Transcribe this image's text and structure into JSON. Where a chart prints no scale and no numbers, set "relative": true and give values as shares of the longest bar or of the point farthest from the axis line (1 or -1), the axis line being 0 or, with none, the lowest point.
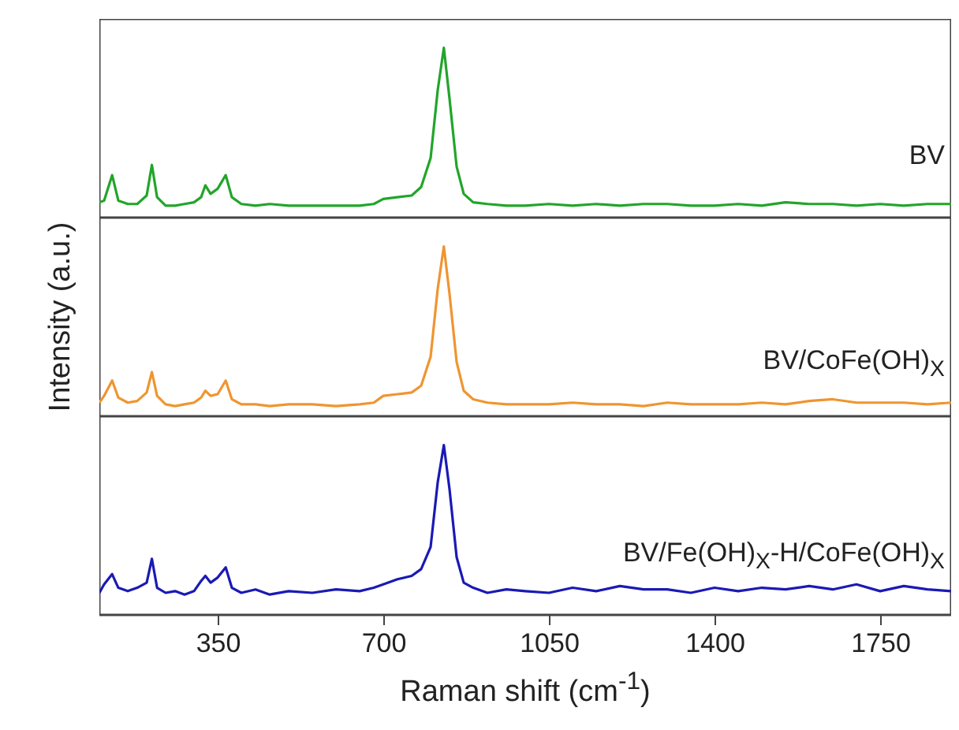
{
  "chart_data": [
    {
      "type": "line",
      "relative": true,
      "xlim": [
        100,
        1900
      ],
      "tick_labels": false,
      "grid": false,
      "marker": "none",
      "x": [
        100,
        110,
        127,
        140,
        160,
        180,
        200,
        211,
        222,
        240,
        260,
        280,
        300,
        315,
        324,
        335,
        350,
        367,
        380,
        400,
        430,
        460,
        500,
        550,
        600,
        650,
        680,
        700,
        730,
        760,
        780,
        800,
        815,
        828,
        840,
        855,
        870,
        890,
        920,
        960,
        1000,
        1050,
        1100,
        1150,
        1200,
        1250,
        1300,
        1350,
        1400,
        1450,
        1500,
        1550,
        1600,
        1650,
        1700,
        1750,
        1800,
        1850,
        1900
      ],
      "series": [
        {
          "name": "BV",
          "color": "#22a52a",
          "values": [
            0.09,
            0.1,
            0.25,
            0.1,
            0.08,
            0.08,
            0.13,
            0.31,
            0.12,
            0.07,
            0.07,
            0.08,
            0.09,
            0.12,
            0.19,
            0.14,
            0.17,
            0.25,
            0.12,
            0.08,
            0.07,
            0.08,
            0.07,
            0.07,
            0.07,
            0.07,
            0.08,
            0.11,
            0.12,
            0.13,
            0.18,
            0.35,
            0.75,
            1.0,
            0.7,
            0.3,
            0.14,
            0.09,
            0.08,
            0.07,
            0.07,
            0.08,
            0.07,
            0.08,
            0.07,
            0.08,
            0.08,
            0.07,
            0.07,
            0.08,
            0.07,
            0.09,
            0.08,
            0.08,
            0.07,
            0.08,
            0.07,
            0.08,
            0.08
          ]
        }
      ]
    },
    {
      "type": "line",
      "relative": true,
      "xlim": [
        100,
        1900
      ],
      "tick_labels": false,
      "grid": false,
      "marker": "none",
      "ylabel": "Intensity (a.u.)",
      "x": [
        100,
        110,
        127,
        140,
        160,
        180,
        200,
        211,
        222,
        240,
        260,
        280,
        300,
        315,
        324,
        335,
        350,
        367,
        380,
        400,
        430,
        460,
        500,
        550,
        600,
        650,
        680,
        700,
        730,
        760,
        780,
        800,
        815,
        828,
        840,
        855,
        870,
        890,
        920,
        960,
        1000,
        1050,
        1100,
        1150,
        1200,
        1250,
        1300,
        1350,
        1400,
        1450,
        1500,
        1550,
        1600,
        1650,
        1700,
        1750,
        1800,
        1850,
        1900
      ],
      "series": [
        {
          "name": "BV/CoFe(OH)$_{X}$",
          "color": "#ef9530",
          "values": [
            0.08,
            0.12,
            0.21,
            0.11,
            0.08,
            0.09,
            0.14,
            0.26,
            0.12,
            0.07,
            0.06,
            0.07,
            0.08,
            0.11,
            0.15,
            0.12,
            0.13,
            0.21,
            0.1,
            0.07,
            0.07,
            0.06,
            0.07,
            0.07,
            0.06,
            0.07,
            0.08,
            0.12,
            0.13,
            0.14,
            0.18,
            0.35,
            0.75,
            1.0,
            0.72,
            0.32,
            0.15,
            0.1,
            0.08,
            0.07,
            0.07,
            0.07,
            0.08,
            0.07,
            0.07,
            0.06,
            0.08,
            0.07,
            0.07,
            0.07,
            0.08,
            0.07,
            0.09,
            0.1,
            0.08,
            0.08,
            0.08,
            0.07,
            0.08
          ]
        }
      ]
    },
    {
      "type": "line",
      "relative": true,
      "xlim": [
        100,
        1900
      ],
      "xticks": [
        350,
        700,
        1050,
        1400,
        1750
      ],
      "tick_labels": "x",
      "grid": false,
      "marker": "none",
      "xlabel": "Raman shift (cm$^{-1}$)",
      "x": [
        100,
        110,
        127,
        140,
        160,
        180,
        200,
        211,
        222,
        240,
        260,
        280,
        300,
        315,
        324,
        335,
        350,
        367,
        380,
        400,
        430,
        460,
        500,
        550,
        600,
        650,
        680,
        700,
        730,
        760,
        780,
        800,
        815,
        828,
        840,
        855,
        870,
        890,
        920,
        960,
        1000,
        1050,
        1100,
        1150,
        1200,
        1250,
        1300,
        1350,
        1400,
        1450,
        1500,
        1550,
        1600,
        1650,
        1700,
        1750,
        1800,
        1850,
        1900
      ],
      "series": [
        {
          "name": "BV/Fe(OH)$_{X}$-H/CoFe(OH)$_{X}$",
          "color": "#1a1ab4",
          "values": [
            0.13,
            0.18,
            0.24,
            0.16,
            0.14,
            0.16,
            0.19,
            0.33,
            0.16,
            0.13,
            0.14,
            0.12,
            0.14,
            0.2,
            0.23,
            0.19,
            0.22,
            0.28,
            0.16,
            0.13,
            0.15,
            0.12,
            0.14,
            0.13,
            0.15,
            0.14,
            0.16,
            0.18,
            0.21,
            0.23,
            0.27,
            0.4,
            0.78,
            1.0,
            0.74,
            0.34,
            0.19,
            0.16,
            0.13,
            0.15,
            0.14,
            0.13,
            0.16,
            0.14,
            0.17,
            0.15,
            0.15,
            0.13,
            0.16,
            0.14,
            0.16,
            0.15,
            0.17,
            0.15,
            0.18,
            0.14,
            0.17,
            0.15,
            0.14
          ]
        }
      ]
    }
  ]
}
